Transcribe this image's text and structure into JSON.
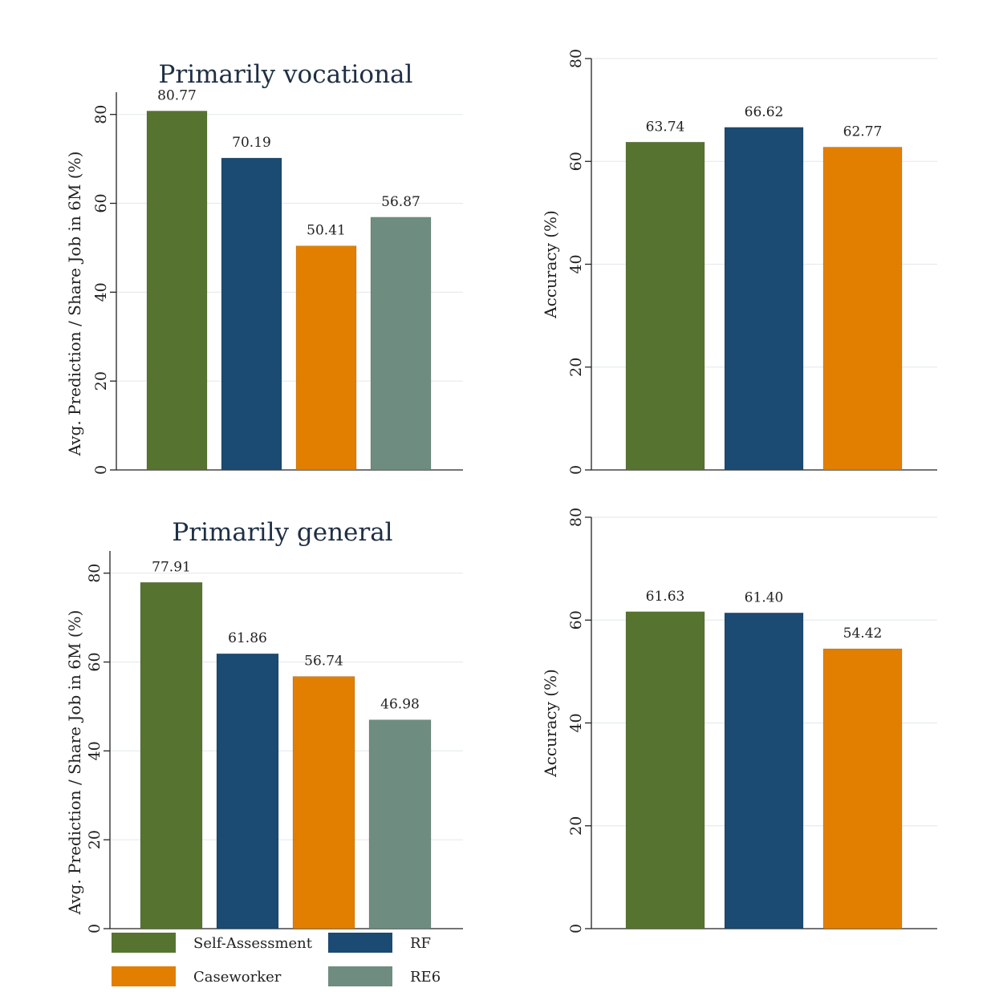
{
  "colors": {
    "Self-Assessment": "#56742f",
    "RF": "#1b4a72",
    "Caseworker": "#e27f00",
    "RE6": "#6e8d80"
  },
  "legend": [
    {
      "name": "Self-Assessment"
    },
    {
      "name": "RF"
    },
    {
      "name": "Caseworker"
    },
    {
      "name": "RE6"
    }
  ],
  "chart_data": [
    {
      "type": "bar",
      "title": "Primarily vocational",
      "ylabel": "Avg. Prediction / Share Job in 6M (%)",
      "xlabel": "",
      "categories": [
        "Self-Assessment",
        "RF",
        "Caseworker",
        "RE6"
      ],
      "values": [
        80.77,
        70.19,
        50.41,
        56.87
      ],
      "labels": [
        "80.77",
        "70.19",
        "50.41",
        "56.87"
      ],
      "ylim": [
        0,
        85
      ],
      "yticks": [
        0,
        20,
        40,
        60,
        80
      ],
      "grid": true
    },
    {
      "type": "bar",
      "title": "",
      "ylabel": "Accuracy (%)",
      "xlabel": "",
      "categories": [
        "Self-Assessment",
        "RF",
        "Caseworker"
      ],
      "values": [
        63.74,
        66.62,
        62.77
      ],
      "labels": [
        "63.74",
        "66.62",
        "62.77"
      ],
      "ylim": [
        0,
        80
      ],
      "yticks": [
        0,
        20,
        40,
        60,
        80
      ],
      "grid": true
    },
    {
      "type": "bar",
      "title": "Primarily general",
      "ylabel": "Avg. Prediction / Share Job in 6M (%)",
      "xlabel": "",
      "categories": [
        "Self-Assessment",
        "RF",
        "Caseworker",
        "RE6"
      ],
      "values": [
        77.91,
        61.86,
        56.74,
        46.98
      ],
      "labels": [
        "77.91",
        "61.86",
        "56.74",
        "46.98"
      ],
      "ylim": [
        0,
        85
      ],
      "yticks": [
        0,
        20,
        40,
        60,
        80
      ],
      "grid": true
    },
    {
      "type": "bar",
      "title": "",
      "ylabel": "Accuracy (%)",
      "xlabel": "",
      "categories": [
        "Self-Assessment",
        "RF",
        "Caseworker"
      ],
      "values": [
        61.63,
        61.4,
        54.42
      ],
      "labels": [
        "61.63",
        "61.40",
        "54.42"
      ],
      "ylim": [
        0,
        80
      ],
      "yticks": [
        0,
        20,
        40,
        60,
        80
      ],
      "grid": true
    }
  ]
}
